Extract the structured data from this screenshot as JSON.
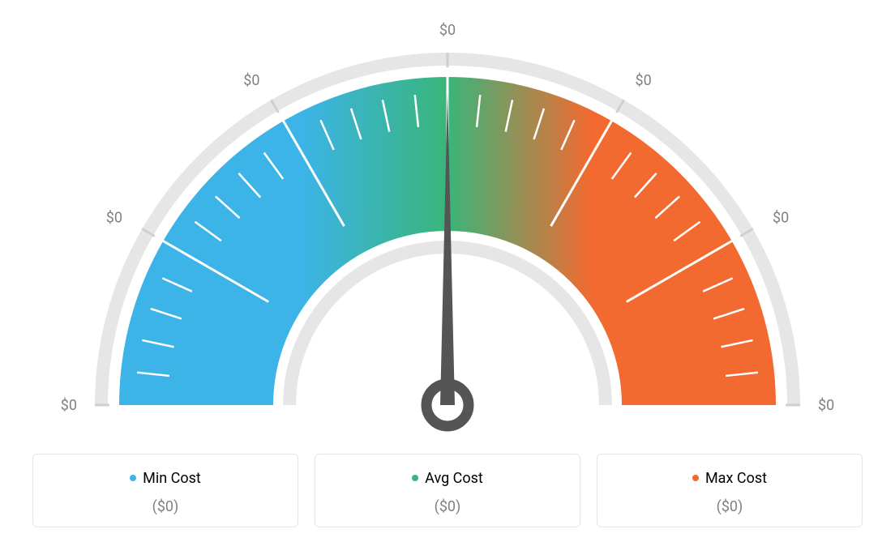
{
  "gauge": {
    "type": "gauge",
    "tick_labels": [
      "$0",
      "$0",
      "$0",
      "$0",
      "$0",
      "$0",
      "$0"
    ],
    "tick_label_color": "#808080",
    "tick_label_fontsize": 18,
    "colors": {
      "min": "#3cb4e7",
      "avg": "#39b57a",
      "max": "#f36a30"
    },
    "outer_ring_color": "#e6e6e6",
    "inner_ring_color": "#e6e6e6",
    "tick_color": "#ffffff",
    "needle_color": "#555555",
    "background": "#ffffff",
    "needle_value": 0.5,
    "outer_radius": 405,
    "inner_radius": 215,
    "ring_thickness": 16,
    "major_tick_count": 7,
    "minor_ticks_between": 4
  },
  "legend": {
    "items": [
      {
        "label": "Min Cost",
        "value": "($0)",
        "color": "#3cb4e7"
      },
      {
        "label": "Avg Cost",
        "value": "($0)",
        "color": "#39b57a"
      },
      {
        "label": "Max Cost",
        "value": "($0)",
        "color": "#f36a30"
      }
    ],
    "label_fontsize": 18,
    "value_fontsize": 18,
    "value_color": "#808080",
    "card_border_color": "#e5e5e5",
    "card_border_radius": 6
  }
}
